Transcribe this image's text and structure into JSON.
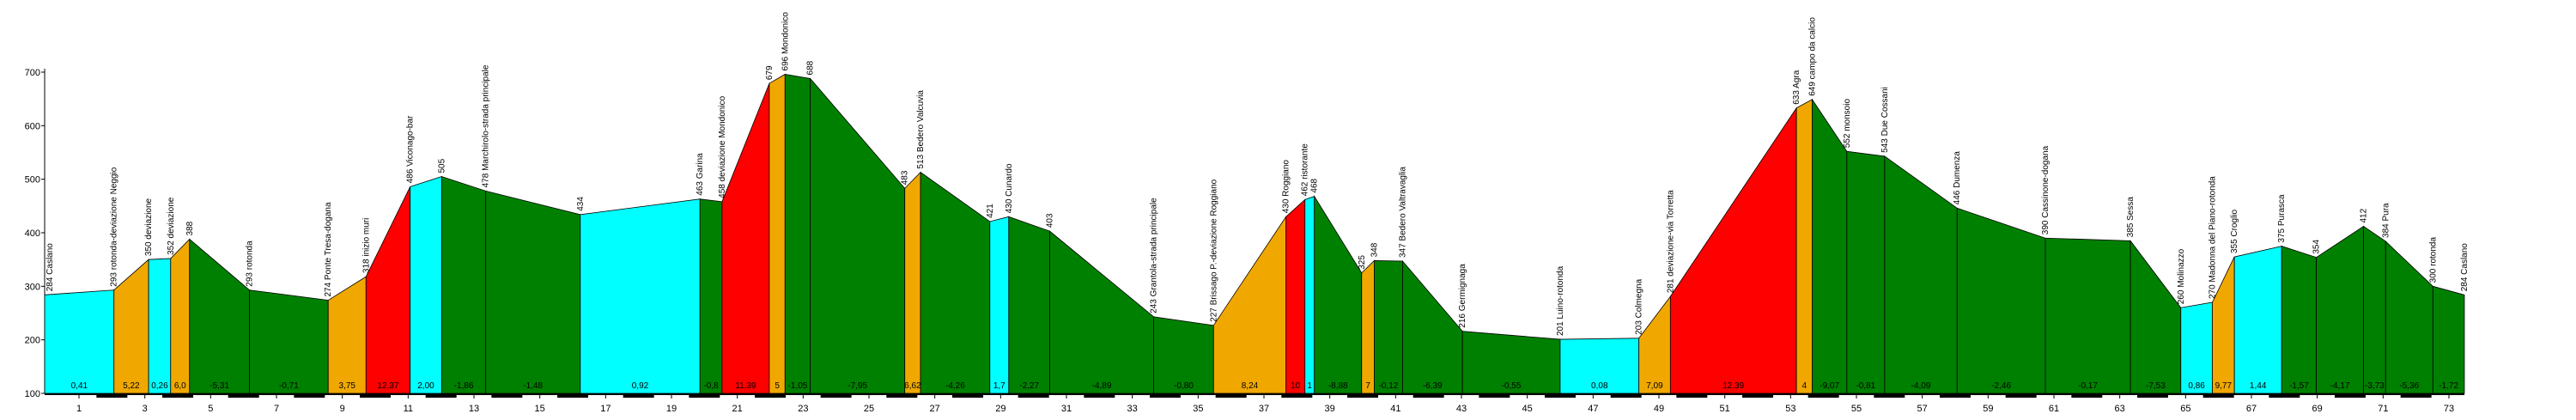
{
  "chart_data": {
    "type": "area",
    "title": "",
    "xlabel": "",
    "ylabel": "",
    "ylim": [
      100,
      700
    ],
    "y_ticks": [
      100,
      200,
      300,
      400,
      500,
      600,
      700
    ],
    "x_ticks": [
      1,
      3,
      5,
      7,
      9,
      11,
      13,
      15,
      17,
      19,
      21,
      23,
      25,
      27,
      29,
      31,
      33,
      35,
      37,
      39,
      41,
      43,
      45,
      47,
      49,
      51,
      53,
      55,
      57,
      59,
      61,
      63,
      65,
      67,
      69,
      71,
      73
    ],
    "colors": {
      "flat": "#00ffff",
      "down": "#008000",
      "up_moderate": "#f0a800",
      "up_steep": "#ff0000",
      "outline": "#000000"
    },
    "points": [
      {
        "km": 0.0,
        "alt": 284,
        "label": "284 Caslano"
      },
      {
        "km": 2.2,
        "alt": 293,
        "label": "293 rotonda-deviazione Neggio"
      },
      {
        "km": 3.3,
        "alt": 350,
        "label": "350 deviazione"
      },
      {
        "km": 4.0,
        "alt": 352,
        "label": "352 deviazione"
      },
      {
        "km": 4.6,
        "alt": 388,
        "label": "388"
      },
      {
        "km": 6.5,
        "alt": 293,
        "label": "293 rotonda"
      },
      {
        "km": 9.0,
        "alt": 274,
        "label": "274 Ponte Tresa-dogana"
      },
      {
        "km": 10.2,
        "alt": 318,
        "label": "318 inizio muri"
      },
      {
        "km": 11.6,
        "alt": 486,
        "label": "486 Viconago-bar"
      },
      {
        "km": 12.6,
        "alt": 505,
        "label": "505"
      },
      {
        "km": 14.0,
        "alt": 478,
        "label": "478 Marchirolo-strada principale"
      },
      {
        "km": 17.0,
        "alt": 434,
        "label": "434"
      },
      {
        "km": 20.8,
        "alt": 463,
        "label": "463 Garina"
      },
      {
        "km": 21.5,
        "alt": 458,
        "label": "458 deviazione Mondonico"
      },
      {
        "km": 23.0,
        "alt": 679,
        "label": "679"
      },
      {
        "km": 23.5,
        "alt": 696,
        "label": "696 Mondonico"
      },
      {
        "km": 24.3,
        "alt": 688,
        "label": "688"
      },
      {
        "km": 27.3,
        "alt": 483,
        "label": "483"
      },
      {
        "km": 27.8,
        "alt": 513,
        "label": "513 Bedero Valcuvia"
      },
      {
        "km": 30.0,
        "alt": 421,
        "label": "421"
      },
      {
        "km": 30.6,
        "alt": 430,
        "label": "430 Cunardo"
      },
      {
        "km": 31.9,
        "alt": 403,
        "label": "403"
      },
      {
        "km": 35.2,
        "alt": 243,
        "label": "243 Grantola-strada principale"
      },
      {
        "km": 37.1,
        "alt": 227,
        "label": "227 Brissago P.-deviazione Roggiano"
      },
      {
        "km": 39.4,
        "alt": 430,
        "label": "430 Roggiano"
      },
      {
        "km": 40.0,
        "alt": 462,
        "label": "462 ristorante"
      },
      {
        "km": 40.3,
        "alt": 468,
        "label": "468"
      },
      {
        "km": 41.8,
        "alt": 325,
        "label": "325"
      },
      {
        "km": 42.2,
        "alt": 348,
        "label": "348"
      },
      {
        "km": 43.1,
        "alt": 347,
        "label": "347 Bedero Valtravaglia"
      },
      {
        "km": 45.0,
        "alt": 216,
        "label": "216 Germignaga"
      },
      {
        "km": 48.1,
        "alt": 201,
        "label": "201 Luino-rotonda"
      },
      {
        "km": 50.6,
        "alt": 203,
        "label": "203 Colmegna"
      },
      {
        "km": 51.6,
        "alt": 281,
        "label": "281 deviazione-via Torretta"
      },
      {
        "km": 55.6,
        "alt": 633,
        "label": "633 Agra"
      },
      {
        "km": 56.1,
        "alt": 649,
        "label": "649 campo da calcio"
      },
      {
        "km": 57.2,
        "alt": 552,
        "label": "552 monsoio"
      },
      {
        "km": 58.4,
        "alt": 543,
        "label": "543 Due Cossani"
      },
      {
        "km": 60.7,
        "alt": 446,
        "label": "446 Dumenza"
      },
      {
        "km": 63.5,
        "alt": 390,
        "label": "390 Cassinone-dogana"
      },
      {
        "km": 66.2,
        "alt": 385,
        "label": "385 Sessa"
      },
      {
        "km": 67.8,
        "alt": 260,
        "label": "260 Molinazzo"
      },
      {
        "km": 68.8,
        "alt": 270,
        "label": "270 Madonna del Piano-rotonda"
      },
      {
        "km": 69.5,
        "alt": 355,
        "label": "355 Croglio"
      },
      {
        "km": 71.0,
        "alt": 375,
        "label": "375 Purasca"
      },
      {
        "km": 72.1,
        "alt": 354,
        "label": "354"
      },
      {
        "km": 73.6,
        "alt": 412,
        "label": "412"
      },
      {
        "km": 74.3,
        "alt": 384,
        "label": "384 Pura"
      },
      {
        "km": 75.8,
        "alt": 300,
        "label": "300 rotonda"
      },
      {
        "km": 76.8,
        "alt": 284,
        "label": "284 Caslano"
      }
    ],
    "segment_grades": [
      "0,41",
      "5,22",
      "0,26",
      "6,0",
      "-5,31",
      "-0,71",
      "3,75",
      "12,37",
      "2,00",
      "-1,86",
      "-1,48",
      "0,92",
      "-0,8",
      "11,39",
      "5",
      "-1,05",
      "-7,95",
      "6,62",
      "-4,26",
      "1,7",
      "-2,27",
      "-4,89",
      "-0,80",
      "8,24",
      "10",
      "1",
      "-8,88",
      "7",
      "-0,12",
      "-6,39",
      "-0,55",
      "0,08",
      "7,09",
      "12,39",
      "4",
      "-9,07",
      "-0,81",
      "-4,09",
      "-2,46",
      "-0,17",
      "-7,53",
      "0,86",
      "9,77",
      "1,44",
      "-1,57",
      "-4,17",
      "-3,73",
      "-5,36",
      "-1,72"
    ]
  }
}
